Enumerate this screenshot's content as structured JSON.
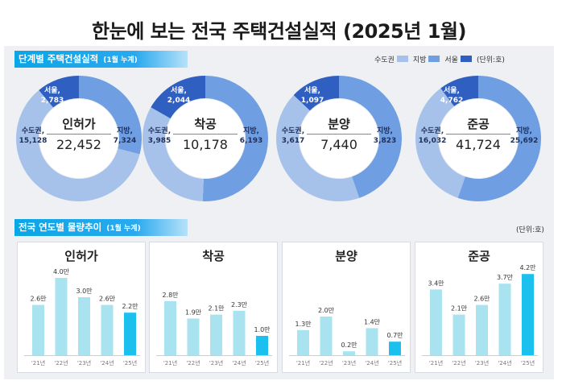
{
  "title": "한눈에 보는 전국 주택건설실적 (2025년 1월)",
  "section1": {
    "label": "단계별 주택건설실적",
    "sub": "(1월 누계)"
  },
  "section2": {
    "label": "전국 연도별 물량추이",
    "sub": "(1월 누계)"
  },
  "legend": {
    "items": [
      "수도권",
      "지방",
      "서울"
    ],
    "unit": "(단위:호)"
  },
  "unit2": "(단위:호)",
  "colors": {
    "capital": "#a7c2ea",
    "regional": "#6f9ee2",
    "seoul": "#2f5fc1",
    "bar": "#a9e3ef",
    "bar_last": "#1bc0ee",
    "label_white": "#ffffff",
    "label_dark": "#1e2f5c"
  },
  "chart_data": {
    "donuts": [
      {
        "type": "pie",
        "title": "인허가",
        "total": "22,452",
        "segments": [
          {
            "name": "서울",
            "label": "서울,",
            "value": 2783,
            "display": "2,783"
          },
          {
            "name": "지방",
            "label": "지방,",
            "value": 7324,
            "display": "7,324"
          },
          {
            "name": "수도권",
            "label": "수도권,",
            "value": 15128,
            "display": "15,128"
          }
        ]
      },
      {
        "type": "pie",
        "title": "착공",
        "total": "10,178",
        "segments": [
          {
            "name": "서울",
            "label": "서울,",
            "value": 2044,
            "display": "2,044"
          },
          {
            "name": "지방",
            "label": "지방,",
            "value": 6193,
            "display": "6,193"
          },
          {
            "name": "수도권",
            "label": "수도권,",
            "value": 3985,
            "display": "3,985"
          }
        ]
      },
      {
        "type": "pie",
        "title": "분양",
        "total": "7,440",
        "segments": [
          {
            "name": "서울",
            "label": "서울,",
            "value": 1097,
            "display": "1,097"
          },
          {
            "name": "지방",
            "label": "지방,",
            "value": 3823,
            "display": "3,823"
          },
          {
            "name": "수도권",
            "label": "수도권,",
            "value": 3617,
            "display": "3,617"
          }
        ]
      },
      {
        "type": "pie",
        "title": "준공",
        "total": "41,724",
        "segments": [
          {
            "name": "서울",
            "label": "서울,",
            "value": 4762,
            "display": "4,762"
          },
          {
            "name": "지방",
            "label": "지방,",
            "value": 25692,
            "display": "25,692"
          },
          {
            "name": "수도권",
            "label": "수도권,",
            "value": 16032,
            "display": "16,032"
          }
        ]
      }
    ],
    "bars": [
      {
        "type": "bar",
        "title": "인허가",
        "categories": [
          "'21년",
          "'22년",
          "'23년",
          "'24년",
          "'25년"
        ],
        "values": [
          2.6,
          4.0,
          3.0,
          2.6,
          2.2
        ],
        "labels": [
          "2.6만",
          "4.0만",
          "3.0만",
          "2.6만",
          "2.2만"
        ]
      },
      {
        "type": "bar",
        "title": "착공",
        "categories": [
          "'21년",
          "'22년",
          "'23년",
          "'24년",
          "'25년"
        ],
        "values": [
          2.8,
          1.9,
          2.1,
          2.3,
          1.0
        ],
        "labels": [
          "2.8만",
          "1.9만",
          "2.1만",
          "2.3만",
          "1.0만"
        ]
      },
      {
        "type": "bar",
        "title": "분양",
        "categories": [
          "'21년",
          "'22년",
          "'23년",
          "'24년",
          "'25년"
        ],
        "values": [
          1.3,
          2.0,
          0.2,
          1.4,
          0.7
        ],
        "labels": [
          "1.3만",
          "2.0만",
          "0.2만",
          "1.4만",
          "0.7만"
        ]
      },
      {
        "type": "bar",
        "title": "준공",
        "categories": [
          "'21년",
          "'22년",
          "'23년",
          "'24년",
          "'25년"
        ],
        "values": [
          3.4,
          2.1,
          2.6,
          3.7,
          4.2
        ],
        "labels": [
          "3.4만",
          "2.1만",
          "2.6만",
          "3.7만",
          "4.2만"
        ]
      }
    ]
  }
}
